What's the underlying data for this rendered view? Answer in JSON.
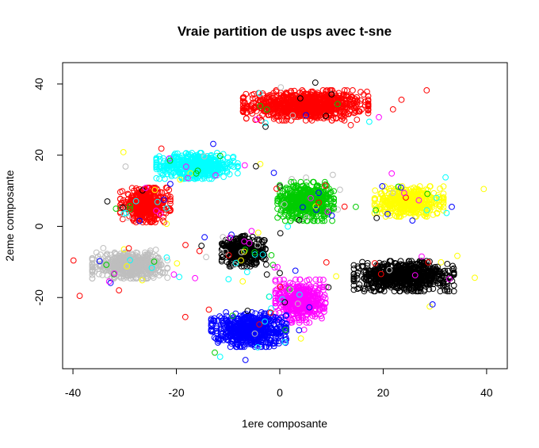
{
  "chart_data": {
    "type": "scatter",
    "title": "Vraie partition de usps avec t-sne",
    "xlabel": "1ere composante",
    "ylabel": "2eme composante",
    "xlim": [
      -42,
      44
    ],
    "ylim": [
      -40,
      46
    ],
    "xticks": [
      -40,
      -20,
      0,
      20,
      40
    ],
    "yticks": [
      -20,
      0,
      20,
      40
    ],
    "xtick_labels": [
      "-40",
      "-20",
      "0",
      "20",
      "40"
    ],
    "ytick_labels": [
      "-20",
      "0",
      "20",
      "40"
    ],
    "marker": "open-circle",
    "grid": false,
    "legend": "none",
    "clusters": [
      {
        "color": "#ff0000",
        "center": [
          5,
          34
        ],
        "spread": [
          10,
          3.5
        ],
        "count": 900
      },
      {
        "color": "#00ffff",
        "center": [
          -16,
          17
        ],
        "spread": [
          6.5,
          3
        ],
        "count": 550
      },
      {
        "color": "#00cc00",
        "center": [
          5,
          7
        ],
        "spread": [
          4.5,
          4.5
        ],
        "count": 550
      },
      {
        "color": "#ffff00",
        "center": [
          25,
          7
        ],
        "spread": [
          5.5,
          3.5
        ],
        "count": 500
      },
      {
        "color": "#ff0000",
        "center": [
          -26,
          6
        ],
        "spread": [
          4,
          4
        ],
        "count": 450
      },
      {
        "color": "#bebebe",
        "center": [
          -29,
          -11
        ],
        "spread": [
          6,
          3
        ],
        "count": 500
      },
      {
        "color": "#000000",
        "center": [
          -7,
          -7
        ],
        "spread": [
          3.5,
          3.5
        ],
        "count": 400
      },
      {
        "color": "#000000",
        "center": [
          24,
          -14
        ],
        "spread": [
          8,
          3.5
        ],
        "count": 800
      },
      {
        "color": "#ff00ff",
        "center": [
          4,
          -21
        ],
        "spread": [
          4,
          5
        ],
        "count": 450
      },
      {
        "color": "#0000ff",
        "center": [
          -6,
          -29
        ],
        "spread": [
          6,
          4
        ],
        "count": 650
      }
    ],
    "outlier_colors": [
      "#ff0000",
      "#00cc00",
      "#00ffff",
      "#ff00ff",
      "#0000ff",
      "#000000",
      "#bebebe",
      "#ffff00"
    ]
  }
}
